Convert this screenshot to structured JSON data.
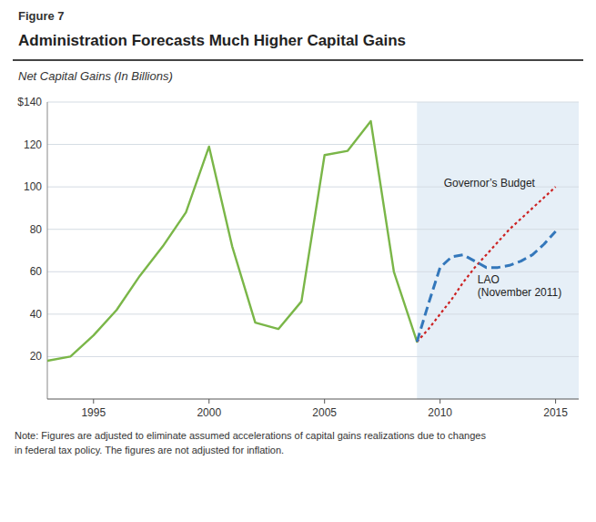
{
  "chart_data": {
    "type": "line",
    "figure_label": "Figure 7",
    "title": "Administration Forecasts Much Higher Capital Gains",
    "subtitle": "Net Capital Gains (In Billions)",
    "note": "Note: Figures are adjusted to eliminate assumed accelerations of capital gains realizations due to changes\nin federal tax policy. The figures are not adjusted for inflation.",
    "x": [
      1993,
      1994,
      1995,
      1996,
      1997,
      1998,
      1999,
      2000,
      2001,
      2002,
      2003,
      2004,
      2005,
      2006,
      2007,
      2008,
      2009,
      2009.5,
      2010,
      2010.5,
      2011,
      2011.5,
      2012,
      2012.5,
      2013,
      2013.5,
      2014,
      2014.5,
      2015
    ],
    "series": [
      {
        "color": "#7AB648",
        "line_style": "solid",
        "values": [
          18,
          20,
          30,
          42,
          58,
          72,
          88,
          119,
          72,
          36,
          33,
          46,
          115,
          117,
          131,
          60,
          27,
          null,
          null,
          null,
          null,
          null,
          null,
          null,
          null,
          null,
          null,
          null,
          null
        ]
      },
      {
        "name": "Governor’s Budget",
        "color": "#CC2222",
        "line_style": "dotted",
        "values": [
          null,
          null,
          null,
          null,
          null,
          null,
          null,
          null,
          null,
          null,
          null,
          null,
          null,
          null,
          null,
          null,
          27,
          33,
          40,
          47,
          55,
          62,
          68,
          74,
          80,
          85,
          90,
          95,
          100
        ]
      },
      {
        "name": "LAO\n(November 2011)",
        "color": "#3377BB",
        "line_style": "dashed",
        "values": [
          null,
          null,
          null,
          null,
          null,
          null,
          null,
          null,
          null,
          null,
          null,
          null,
          null,
          null,
          null,
          null,
          27,
          45,
          62,
          67,
          68,
          65,
          62,
          62,
          63,
          65,
          68,
          73,
          79
        ]
      }
    ],
    "forecast_start": 2009.0,
    "xlim": [
      1993.0,
      2016.0
    ],
    "xticks": [
      1995,
      2000,
      2005,
      2010,
      2015
    ],
    "ylim": [
      0,
      140
    ],
    "yticks": [
      20,
      40,
      60,
      80,
      100,
      120,
      {
        "value": 140,
        "label": "$140"
      }
    ],
    "grid": true
  }
}
